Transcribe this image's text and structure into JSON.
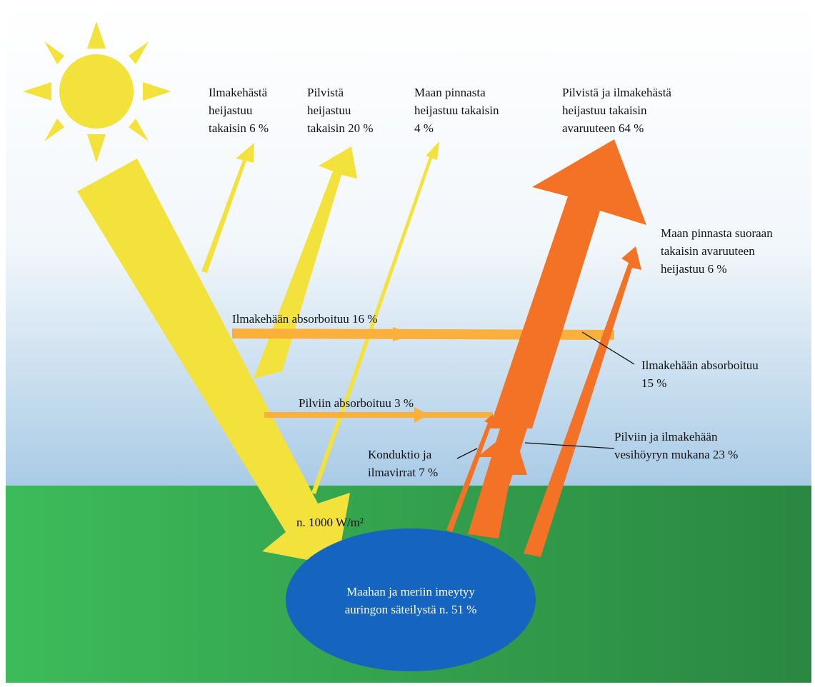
{
  "labels": [
    {
      "lines": [
        "Ilmakehästä",
        "heijastuu",
        "takaisin 6 %"
      ]
    },
    {
      "lines": [
        "Pilvistä",
        "heijastuu",
        "takaisin 20 %"
      ]
    },
    {
      "lines": [
        "Maan pinnasta",
        "heijastuu takaisin",
        "4 %"
      ]
    },
    {
      "lines": [
        "Pilvistä ja ilmakehästä",
        "heijastuu takaisin",
        "avaruuteen 64 %"
      ]
    },
    {
      "lines": [
        "Maan pinnasta suoraan",
        "takaisin avaruuteen",
        "heijastuu 6 %"
      ]
    },
    {
      "lines": [
        "Ilmakehään absorboituu 16 %"
      ]
    },
    {
      "lines": [
        "Ilmakehään absorboituu",
        "15 %"
      ]
    },
    {
      "lines": [
        "Pilviin absorboituu 3 %"
      ]
    },
    {
      "lines": [
        "Konduktio ja",
        "ilmavirrat 7 %"
      ]
    },
    {
      "lines": [
        "Pilviin ja ilmakehään",
        "vesihöyryn mukana 23 %"
      ]
    },
    {
      "lines": [
        "n. 1000 W/m²"
      ]
    },
    {
      "lines": [
        "Maahan ja meriin imeytyy",
        "auringon säteilystä n. 51 %"
      ]
    }
  ]
}
